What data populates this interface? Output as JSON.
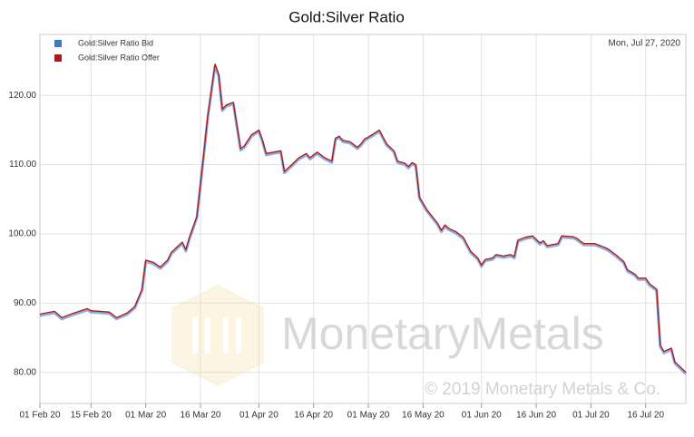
{
  "chart_data": {
    "type": "line",
    "title": "Gold:Silver Ratio",
    "annotation": "Mon, Jul 27, 2020",
    "watermark": "MonetaryMetals",
    "watermark_subtitle": "© 2019 Monetary Metals & Co.",
    "x": [
      "2020-02-01",
      "2020-02-05",
      "2020-02-07",
      "2020-02-10",
      "2020-02-14",
      "2020-02-15",
      "2020-02-20",
      "2020-02-22",
      "2020-02-25",
      "2020-02-27",
      "2020-02-29",
      "2020-03-01",
      "2020-03-03",
      "2020-03-05",
      "2020-03-07",
      "2020-03-08",
      "2020-03-11",
      "2020-03-12",
      "2020-03-13",
      "2020-03-15",
      "2020-03-17",
      "2020-03-18",
      "2020-03-20",
      "2020-03-21",
      "2020-03-22",
      "2020-03-23",
      "2020-03-25",
      "2020-03-27",
      "2020-03-28",
      "2020-03-30",
      "2020-04-01",
      "2020-04-02",
      "2020-04-03",
      "2020-04-07",
      "2020-04-08",
      "2020-04-10",
      "2020-04-12",
      "2020-04-14",
      "2020-04-15",
      "2020-04-17",
      "2020-04-19",
      "2020-04-21",
      "2020-04-22",
      "2020-04-23",
      "2020-04-24",
      "2020-04-26",
      "2020-04-28",
      "2020-04-29",
      "2020-04-30",
      "2020-05-02",
      "2020-05-04",
      "2020-05-06",
      "2020-05-08",
      "2020-05-09",
      "2020-05-11",
      "2020-05-12",
      "2020-05-13",
      "2020-05-14",
      "2020-05-15",
      "2020-05-17",
      "2020-05-20",
      "2020-05-21",
      "2020-05-22",
      "2020-05-23",
      "2020-05-25",
      "2020-05-27",
      "2020-05-29",
      "2020-05-31",
      "2020-06-01",
      "2020-06-02",
      "2020-06-04",
      "2020-06-05",
      "2020-06-07",
      "2020-06-09",
      "2020-06-10",
      "2020-06-11",
      "2020-06-13",
      "2020-06-15",
      "2020-06-17",
      "2020-06-18",
      "2020-06-19",
      "2020-06-22",
      "2020-06-23",
      "2020-06-26",
      "2020-06-27",
      "2020-06-29",
      "2020-07-02",
      "2020-07-05",
      "2020-07-06",
      "2020-07-08",
      "2020-07-10",
      "2020-07-11",
      "2020-07-13",
      "2020-07-14",
      "2020-07-16",
      "2020-07-17",
      "2020-07-19",
      "2020-07-20",
      "2020-07-21",
      "2020-07-23",
      "2020-07-24",
      "2020-07-27"
    ],
    "series": [
      {
        "name": "Gold:Silver Ratio Bid",
        "color": "#3f78c4",
        "values": [
          88.2,
          88.6,
          87.7,
          88.3,
          89,
          88.7,
          88.5,
          87.7,
          88.4,
          89.3,
          91.8,
          96,
          95.7,
          95,
          96,
          97.1,
          98.6,
          97.5,
          99.3,
          102.3,
          111.8,
          116.8,
          124.3,
          122.8,
          117.8,
          118.4,
          118.8,
          112.1,
          112.5,
          114.1,
          114.8,
          113.3,
          111.4,
          111.8,
          108.8,
          109.8,
          110.8,
          111.4,
          110.8,
          111.6,
          110.8,
          110.3,
          113.6,
          113.9,
          113.3,
          113.1,
          112.3,
          112.8,
          113.5,
          114.1,
          114.8,
          112.8,
          111.8,
          110.3,
          110,
          109.5,
          110.1,
          109.8,
          105.1,
          103.3,
          101.3,
          100.3,
          101.1,
          100.6,
          100.1,
          99.3,
          97.3,
          96.3,
          95.3,
          96.1,
          96.3,
          96.8,
          96.6,
          96.8,
          96.5,
          98.9,
          99.3,
          99.5,
          98.5,
          98.8,
          98.1,
          98.4,
          99.5,
          99.4,
          99.2,
          98.4,
          98.4,
          97.8,
          97.5,
          96.7,
          95.8,
          94.6,
          94,
          93.4,
          93.4,
          92.6,
          91.8,
          83.7,
          82.8,
          83.3,
          81.3,
          79.8
        ]
      },
      {
        "name": "Gold:Silver Ratio Offer",
        "color": "#b01818",
        "values": [
          88.4,
          88.8,
          87.9,
          88.5,
          89.2,
          88.9,
          88.7,
          87.9,
          88.6,
          89.5,
          92,
          96.2,
          95.9,
          95.2,
          96.2,
          97.3,
          98.8,
          97.7,
          99.5,
          102.5,
          112,
          117,
          124.5,
          123,
          118,
          118.6,
          119,
          112.3,
          112.7,
          114.3,
          115,
          113.5,
          111.6,
          112,
          109,
          110,
          111,
          111.6,
          111,
          111.8,
          111,
          110.5,
          113.8,
          114.1,
          113.5,
          113.3,
          112.5,
          113,
          113.7,
          114.3,
          115,
          113,
          112,
          110.5,
          110.2,
          109.7,
          110.3,
          110,
          105.3,
          103.5,
          101.5,
          100.5,
          101.3,
          100.8,
          100.3,
          99.5,
          97.5,
          96.5,
          95.5,
          96.3,
          96.5,
          97,
          96.8,
          97,
          96.7,
          99.1,
          99.5,
          99.7,
          98.7,
          99,
          98.3,
          98.6,
          99.7,
          99.6,
          99.4,
          98.6,
          98.6,
          98,
          97.7,
          96.9,
          96,
          94.8,
          94.2,
          93.6,
          93.6,
          92.8,
          92,
          83.9,
          83,
          83.5,
          81.5,
          80
        ]
      }
    ],
    "xlim": [
      "2020-02-01",
      "2020-07-27"
    ],
    "xticks": [
      {
        "value": "2020-02-01",
        "label": "01 Feb 20"
      },
      {
        "value": "2020-02-15",
        "label": "15 Feb 20"
      },
      {
        "value": "2020-03-01",
        "label": "01 Mar 20"
      },
      {
        "value": "2020-03-16",
        "label": "16 Mar 20"
      },
      {
        "value": "2020-04-01",
        "label": "01 Apr 20"
      },
      {
        "value": "2020-04-16",
        "label": "16 Apr 20"
      },
      {
        "value": "2020-05-01",
        "label": "01 May 20"
      },
      {
        "value": "2020-05-16",
        "label": "16 May 20"
      },
      {
        "value": "2020-06-01",
        "label": "01 Jun 20"
      },
      {
        "value": "2020-06-16",
        "label": "16 Jun 20"
      },
      {
        "value": "2020-07-01",
        "label": "01 Jul 20"
      },
      {
        "value": "2020-07-16",
        "label": "16 Jul 20"
      }
    ],
    "ylim": [
      75.5,
      128.8
    ],
    "yticks": [
      {
        "value": 80,
        "label": "80.00"
      },
      {
        "value": 90,
        "label": "90.00"
      },
      {
        "value": 100,
        "label": "100.00"
      },
      {
        "value": 110,
        "label": "110.00"
      },
      {
        "value": 120,
        "label": "120.00"
      }
    ],
    "grid": true,
    "legend": "top-left"
  }
}
